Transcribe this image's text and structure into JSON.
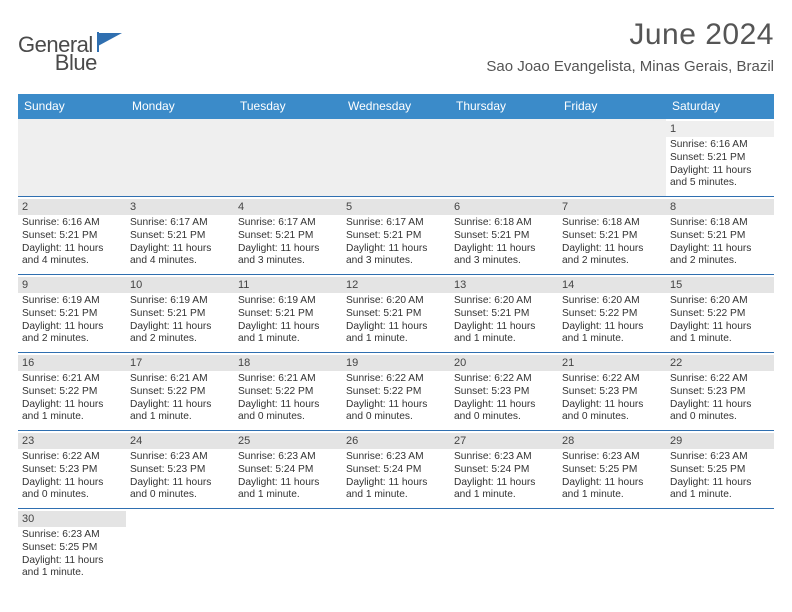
{
  "brand": {
    "word1": "General",
    "word2": "Blue"
  },
  "title": "June 2024",
  "location": "Sao Joao Evangelista, Minas Gerais, Brazil",
  "colors": {
    "header_bg": "#3b8bc9",
    "rule": "#2f6fb0",
    "daybar": "#e4e4e4",
    "text": "#333333",
    "title": "#555555"
  },
  "dow": [
    "Sunday",
    "Monday",
    "Tuesday",
    "Wednesday",
    "Thursday",
    "Friday",
    "Saturday"
  ],
  "first_day_index": 6,
  "days": [
    {
      "n": 1,
      "sunrise": "6:16 AM",
      "sunset": "5:21 PM",
      "daylight": "11 hours and 5 minutes."
    },
    {
      "n": 2,
      "sunrise": "6:16 AM",
      "sunset": "5:21 PM",
      "daylight": "11 hours and 4 minutes."
    },
    {
      "n": 3,
      "sunrise": "6:17 AM",
      "sunset": "5:21 PM",
      "daylight": "11 hours and 4 minutes."
    },
    {
      "n": 4,
      "sunrise": "6:17 AM",
      "sunset": "5:21 PM",
      "daylight": "11 hours and 3 minutes."
    },
    {
      "n": 5,
      "sunrise": "6:17 AM",
      "sunset": "5:21 PM",
      "daylight": "11 hours and 3 minutes."
    },
    {
      "n": 6,
      "sunrise": "6:18 AM",
      "sunset": "5:21 PM",
      "daylight": "11 hours and 3 minutes."
    },
    {
      "n": 7,
      "sunrise": "6:18 AM",
      "sunset": "5:21 PM",
      "daylight": "11 hours and 2 minutes."
    },
    {
      "n": 8,
      "sunrise": "6:18 AM",
      "sunset": "5:21 PM",
      "daylight": "11 hours and 2 minutes."
    },
    {
      "n": 9,
      "sunrise": "6:19 AM",
      "sunset": "5:21 PM",
      "daylight": "11 hours and 2 minutes."
    },
    {
      "n": 10,
      "sunrise": "6:19 AM",
      "sunset": "5:21 PM",
      "daylight": "11 hours and 2 minutes."
    },
    {
      "n": 11,
      "sunrise": "6:19 AM",
      "sunset": "5:21 PM",
      "daylight": "11 hours and 1 minute."
    },
    {
      "n": 12,
      "sunrise": "6:20 AM",
      "sunset": "5:21 PM",
      "daylight": "11 hours and 1 minute."
    },
    {
      "n": 13,
      "sunrise": "6:20 AM",
      "sunset": "5:21 PM",
      "daylight": "11 hours and 1 minute."
    },
    {
      "n": 14,
      "sunrise": "6:20 AM",
      "sunset": "5:22 PM",
      "daylight": "11 hours and 1 minute."
    },
    {
      "n": 15,
      "sunrise": "6:20 AM",
      "sunset": "5:22 PM",
      "daylight": "11 hours and 1 minute."
    },
    {
      "n": 16,
      "sunrise": "6:21 AM",
      "sunset": "5:22 PM",
      "daylight": "11 hours and 1 minute."
    },
    {
      "n": 17,
      "sunrise": "6:21 AM",
      "sunset": "5:22 PM",
      "daylight": "11 hours and 1 minute."
    },
    {
      "n": 18,
      "sunrise": "6:21 AM",
      "sunset": "5:22 PM",
      "daylight": "11 hours and 0 minutes."
    },
    {
      "n": 19,
      "sunrise": "6:22 AM",
      "sunset": "5:22 PM",
      "daylight": "11 hours and 0 minutes."
    },
    {
      "n": 20,
      "sunrise": "6:22 AM",
      "sunset": "5:23 PM",
      "daylight": "11 hours and 0 minutes."
    },
    {
      "n": 21,
      "sunrise": "6:22 AM",
      "sunset": "5:23 PM",
      "daylight": "11 hours and 0 minutes."
    },
    {
      "n": 22,
      "sunrise": "6:22 AM",
      "sunset": "5:23 PM",
      "daylight": "11 hours and 0 minutes."
    },
    {
      "n": 23,
      "sunrise": "6:22 AM",
      "sunset": "5:23 PM",
      "daylight": "11 hours and 0 minutes."
    },
    {
      "n": 24,
      "sunrise": "6:23 AM",
      "sunset": "5:23 PM",
      "daylight": "11 hours and 0 minutes."
    },
    {
      "n": 25,
      "sunrise": "6:23 AM",
      "sunset": "5:24 PM",
      "daylight": "11 hours and 1 minute."
    },
    {
      "n": 26,
      "sunrise": "6:23 AM",
      "sunset": "5:24 PM",
      "daylight": "11 hours and 1 minute."
    },
    {
      "n": 27,
      "sunrise": "6:23 AM",
      "sunset": "5:24 PM",
      "daylight": "11 hours and 1 minute."
    },
    {
      "n": 28,
      "sunrise": "6:23 AM",
      "sunset": "5:25 PM",
      "daylight": "11 hours and 1 minute."
    },
    {
      "n": 29,
      "sunrise": "6:23 AM",
      "sunset": "5:25 PM",
      "daylight": "11 hours and 1 minute."
    },
    {
      "n": 30,
      "sunrise": "6:23 AM",
      "sunset": "5:25 PM",
      "daylight": "11 hours and 1 minute."
    }
  ],
  "labels": {
    "sunrise": "Sunrise: ",
    "sunset": "Sunset: ",
    "daylight": "Daylight: "
  }
}
